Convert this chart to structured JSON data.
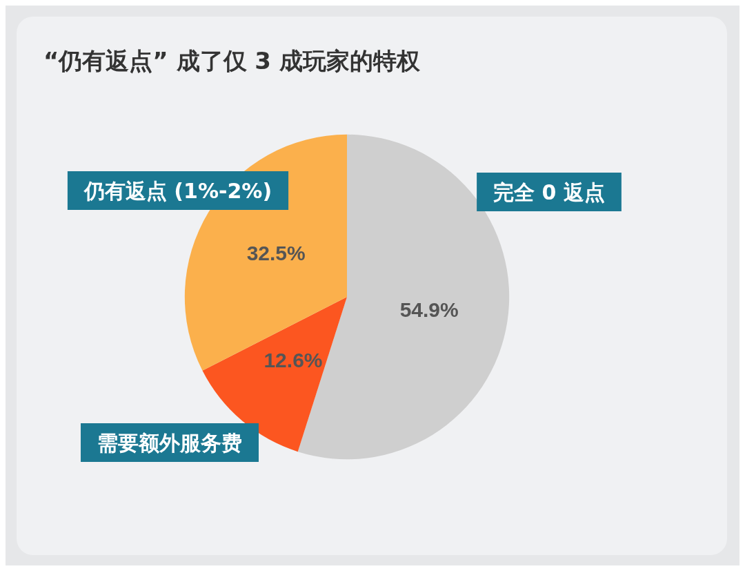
{
  "chart_data": {
    "type": "pie",
    "title": "“仍有返点” 成了仅 3 成玩家的特权",
    "categories": [
      "完全 0 返点",
      "需要额外服务费",
      "仍有返点 (1%-2%)"
    ],
    "values": [
      54.9,
      12.6,
      32.5
    ],
    "value_labels": [
      "54.9%",
      "12.6%",
      "32.5%"
    ],
    "colors": [
      "#cfcfcf",
      "#fc5620",
      "#fbb04c"
    ],
    "legend": false
  }
}
